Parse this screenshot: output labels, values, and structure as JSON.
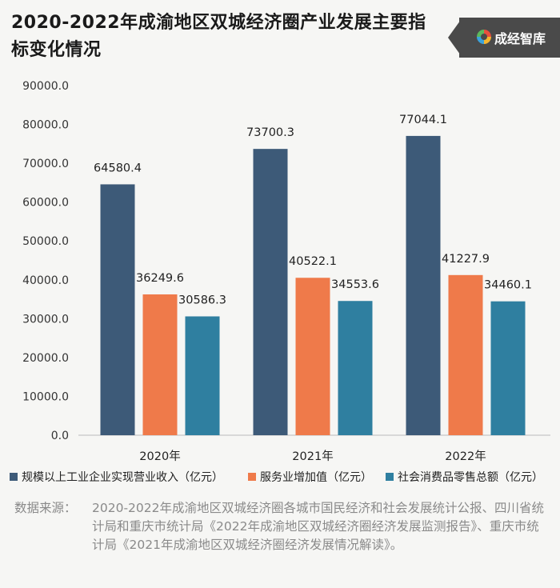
{
  "header": {
    "title": "2020-2022年成渝地区双城经济圈产业发展主要指标变化情况",
    "brand": "成经智库"
  },
  "source": {
    "label": "数据来源：",
    "text": "2020-2022年成渝地区双城经济圈各城市国民经济和社会发展统计公报、四川省统计局和重庆市统计局《2022年成渝地区双城经济圈经济发展监测报告》、重庆市统计局《2021年成渝地区双城经济圈经济发展情况解读》。"
  },
  "colors": {
    "series1": "#3d5a78",
    "series2": "#ef7a4a",
    "series3": "#2f7fa0"
  },
  "chart_data": {
    "type": "bar",
    "title": "2020-2022年成渝地区双城经济圈产业发展主要指标变化情况",
    "categories": [
      "2020年",
      "2021年",
      "2022年"
    ],
    "series": [
      {
        "name": "规模以上工业企业实现营业收入（亿元）",
        "values": [
          64580.4,
          73700.3,
          77044.1
        ],
        "labels": [
          "64580.4",
          "73700.3",
          "77044.1"
        ]
      },
      {
        "name": "服务业增加值（亿元）",
        "values": [
          36249.6,
          40522.1,
          41227.9
        ],
        "labels": [
          "36249.6",
          "40522.1",
          "41227.9"
        ]
      },
      {
        "name": "社会消费品零售总额（亿元）",
        "values": [
          30586.3,
          34553.6,
          34460.1
        ],
        "labels": [
          "30586.3",
          "34553.6",
          "34460.1"
        ]
      }
    ],
    "ylim": [
      0,
      90000
    ],
    "yticks": [
      0,
      10000,
      20000,
      30000,
      40000,
      50000,
      60000,
      70000,
      80000,
      90000
    ],
    "ytick_labels": [
      "0.0",
      "10000.0",
      "20000.0",
      "30000.0",
      "40000.0",
      "50000.0",
      "60000.0",
      "70000.0",
      "80000.0",
      "90000.0"
    ],
    "grid": false,
    "legend_position": "bottom"
  }
}
